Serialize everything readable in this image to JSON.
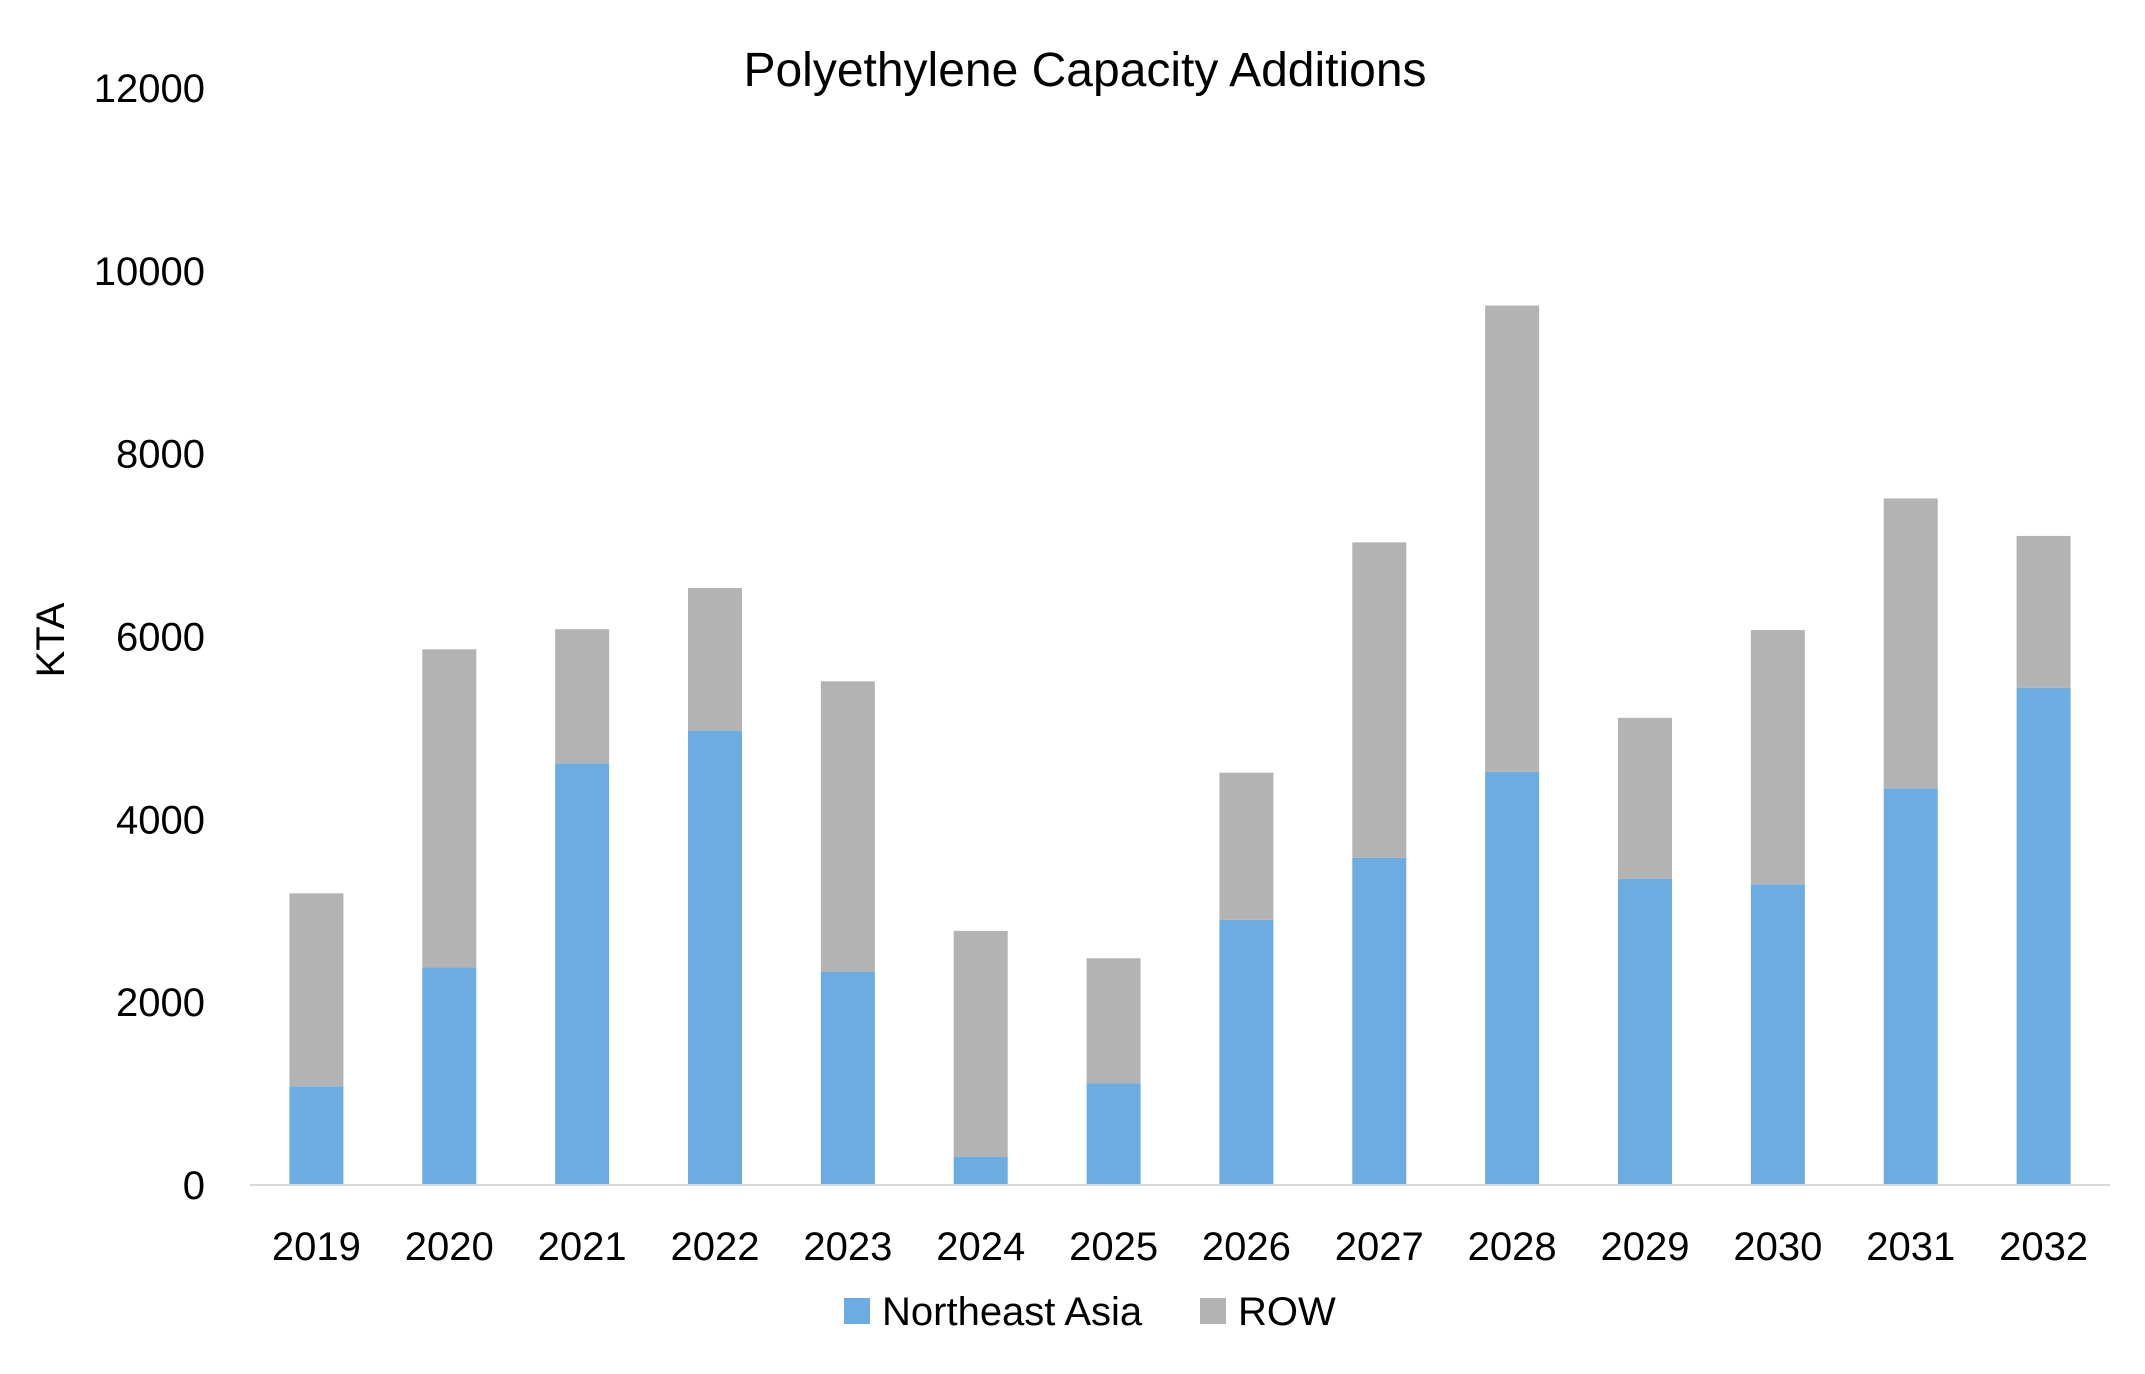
{
  "colors": {
    "northeast_asia": "#6cace0",
    "row": "#b3b3b3",
    "axis": "#d9d9d9"
  },
  "chart_data": {
    "type": "bar",
    "stacked": true,
    "title": "Polyethylene Capacity Additions",
    "xlabel": "",
    "ylabel": "KTA",
    "ylim": [
      0,
      12000
    ],
    "yticks": [
      0,
      2000,
      4000,
      6000,
      8000,
      10000,
      12000
    ],
    "grid": false,
    "legend_position": "bottom",
    "categories": [
      "2019",
      "2020",
      "2021",
      "2022",
      "2023",
      "2024",
      "2025",
      "2026",
      "2027",
      "2028",
      "2029",
      "2030",
      "2031",
      "2032"
    ],
    "series": [
      {
        "name": "Northeast Asia",
        "color": "#6cace0",
        "values": [
          1080,
          2380,
          4610,
          4970,
          2330,
          310,
          1110,
          2900,
          3580,
          4520,
          3350,
          3290,
          4340,
          5440
        ]
      },
      {
        "name": "ROW",
        "color": "#b3b3b3",
        "values": [
          2110,
          3480,
          1470,
          1560,
          3180,
          2470,
          1370,
          1610,
          3450,
          5100,
          1760,
          2780,
          3170,
          1660
        ]
      }
    ]
  }
}
